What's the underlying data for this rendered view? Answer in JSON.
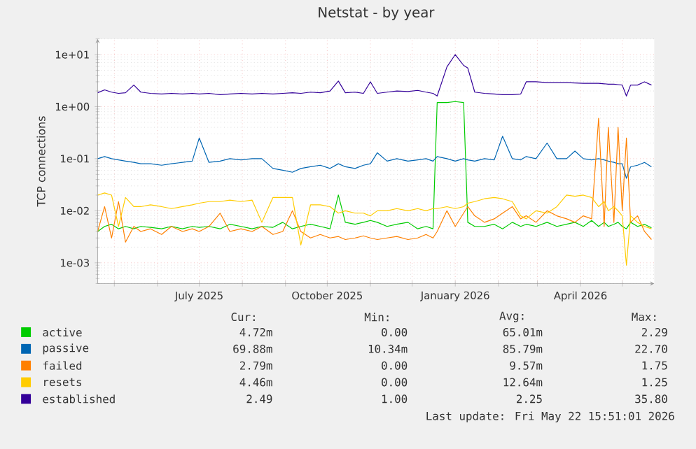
{
  "chart_data": {
    "type": "line",
    "title": "Netstat - by year",
    "ylabel": "TCP connections",
    "log": true,
    "grid": true,
    "legend": "bottom",
    "xlim": [
      "2025-04-19",
      "2026-05-24"
    ],
    "xticks": [
      {
        "value": "2025-05-01",
        "label": null
      },
      {
        "value": "2025-06-01",
        "label": null
      },
      {
        "value": "2025-07-01",
        "label": "July 2025"
      },
      {
        "value": "2025-08-01",
        "label": null
      },
      {
        "value": "2025-09-01",
        "label": null
      },
      {
        "value": "2025-10-01",
        "label": "October 2025"
      },
      {
        "value": "2025-11-01",
        "label": null
      },
      {
        "value": "2025-12-01",
        "label": null
      },
      {
        "value": "2026-01-01",
        "label": "January 2026"
      },
      {
        "value": "2026-02-01",
        "label": null
      },
      {
        "value": "2026-03-01",
        "label": null
      },
      {
        "value": "2026-04-01",
        "label": "April 2026"
      },
      {
        "value": "2026-05-01",
        "label": null
      }
    ],
    "ylim": [
      0.0004,
      20
    ],
    "yticks": [
      {
        "value": 0.001,
        "label": "1e-03"
      },
      {
        "value": 0.01,
        "label": "1e-02"
      },
      {
        "value": 0.1,
        "label": "1e-01"
      },
      {
        "value": 1,
        "label": "1e+00"
      },
      {
        "value": 10,
        "label": "1e+01"
      }
    ],
    "x": [
      "2025-04-19",
      "2025-04-24",
      "2025-04-29",
      "2025-05-04",
      "2025-05-09",
      "2025-05-15",
      "2025-05-20",
      "2025-05-27",
      "2025-06-04",
      "2025-06-11",
      "2025-06-19",
      "2025-06-26",
      "2025-07-01",
      "2025-07-08",
      "2025-07-16",
      "2025-07-23",
      "2025-07-31",
      "2025-08-08",
      "2025-08-15",
      "2025-08-23",
      "2025-08-30",
      "2025-09-06",
      "2025-09-12",
      "2025-09-19",
      "2025-09-26",
      "2025-10-03",
      "2025-10-09",
      "2025-10-14",
      "2025-10-21",
      "2025-10-27",
      "2025-11-01",
      "2025-11-06",
      "2025-11-13",
      "2025-11-20",
      "2025-11-28",
      "2025-12-05",
      "2025-12-11",
      "2025-12-16",
      "2025-12-19",
      "2025-12-26",
      "2026-01-01",
      "2026-01-07",
      "2026-01-10",
      "2026-01-15",
      "2026-01-22",
      "2026-01-29",
      "2026-02-04",
      "2026-02-11",
      "2026-02-17",
      "2026-02-21",
      "2026-02-28",
      "2026-03-08",
      "2026-03-15",
      "2026-03-22",
      "2026-03-28",
      "2026-04-03",
      "2026-04-09",
      "2026-04-14",
      "2026-04-18",
      "2026-04-21",
      "2026-04-25",
      "2026-04-28",
      "2026-05-01",
      "2026-05-04",
      "2026-05-07",
      "2026-05-12",
      "2026-05-17",
      "2026-05-22"
    ],
    "series": [
      {
        "name": "active",
        "color": "#00cc00",
        "values": [
          0.004,
          0.005,
          0.0055,
          0.0045,
          0.005,
          0.0045,
          0.005,
          0.0048,
          0.0045,
          0.005,
          0.0045,
          0.005,
          0.0048,
          0.005,
          0.0045,
          0.0055,
          0.005,
          0.0045,
          0.005,
          0.0048,
          0.006,
          0.0045,
          0.005,
          0.0055,
          0.005,
          0.0045,
          0.02,
          0.006,
          0.0055,
          0.006,
          0.0065,
          0.006,
          0.005,
          0.0055,
          0.006,
          0.0045,
          0.005,
          0.0045,
          1.2,
          1.2,
          1.25,
          1.2,
          0.006,
          0.005,
          0.005,
          0.0055,
          0.0045,
          0.006,
          0.005,
          0.0055,
          0.005,
          0.006,
          0.005,
          0.0055,
          0.006,
          0.005,
          0.0065,
          0.005,
          0.006,
          0.005,
          0.0055,
          0.006,
          0.005,
          0.0045,
          0.006,
          0.005,
          0.0055,
          0.0047
        ]
      },
      {
        "name": "passive",
        "color": "#0066b3",
        "values": [
          0.1,
          0.11,
          0.1,
          0.095,
          0.09,
          0.085,
          0.08,
          0.08,
          0.075,
          0.08,
          0.085,
          0.09,
          0.25,
          0.085,
          0.09,
          0.1,
          0.095,
          0.1,
          0.1,
          0.065,
          0.06,
          0.055,
          0.065,
          0.07,
          0.075,
          0.065,
          0.08,
          0.07,
          0.065,
          0.075,
          0.08,
          0.13,
          0.09,
          0.1,
          0.09,
          0.095,
          0.1,
          0.09,
          0.11,
          0.1,
          0.09,
          0.1,
          0.095,
          0.09,
          0.1,
          0.095,
          0.27,
          0.1,
          0.095,
          0.11,
          0.1,
          0.2,
          0.1,
          0.1,
          0.14,
          0.1,
          0.095,
          0.1,
          0.095,
          0.09,
          0.085,
          0.08,
          0.08,
          0.042,
          0.07,
          0.075,
          0.085,
          0.07
        ]
      },
      {
        "name": "failed",
        "color": "#ff8000",
        "values": [
          0.004,
          0.012,
          0.003,
          0.015,
          0.0025,
          0.005,
          0.004,
          0.0045,
          0.0035,
          0.005,
          0.004,
          0.0045,
          0.004,
          0.005,
          0.009,
          0.004,
          0.0045,
          0.004,
          0.005,
          0.0035,
          0.004,
          0.01,
          0.004,
          0.003,
          0.0035,
          0.003,
          0.0032,
          0.0028,
          0.003,
          0.0033,
          0.003,
          0.0028,
          0.003,
          0.0032,
          0.0028,
          0.003,
          0.0035,
          0.003,
          0.004,
          0.01,
          0.005,
          0.009,
          0.012,
          0.008,
          0.006,
          0.007,
          0.009,
          0.012,
          0.007,
          0.008,
          0.006,
          0.01,
          0.008,
          0.007,
          0.006,
          0.008,
          0.007,
          0.6,
          0.005,
          0.4,
          0.006,
          0.4,
          0.01,
          0.25,
          0.006,
          0.008,
          0.004,
          0.0028
        ]
      },
      {
        "name": "resets",
        "color": "#ffcc00",
        "values": [
          0.02,
          0.022,
          0.02,
          0.005,
          0.018,
          0.012,
          0.012,
          0.013,
          0.012,
          0.011,
          0.012,
          0.013,
          0.014,
          0.015,
          0.015,
          0.016,
          0.015,
          0.016,
          0.006,
          0.018,
          0.018,
          0.018,
          0.0022,
          0.013,
          0.013,
          0.012,
          0.009,
          0.01,
          0.009,
          0.009,
          0.008,
          0.01,
          0.01,
          0.011,
          0.01,
          0.011,
          0.01,
          0.011,
          0.011,
          0.012,
          0.011,
          0.012,
          0.014,
          0.015,
          0.017,
          0.018,
          0.017,
          0.015,
          0.008,
          0.007,
          0.01,
          0.009,
          0.012,
          0.02,
          0.019,
          0.02,
          0.018,
          0.012,
          0.015,
          0.01,
          0.012,
          0.01,
          0.008,
          0.0009,
          0.008,
          0.006,
          0.005,
          0.0045
        ]
      },
      {
        "name": "established",
        "color": "#330099",
        "values": [
          1.85,
          2.1,
          1.9,
          1.8,
          1.85,
          2.6,
          1.9,
          1.8,
          1.75,
          1.8,
          1.75,
          1.8,
          1.75,
          1.8,
          1.7,
          1.75,
          1.8,
          1.75,
          1.8,
          1.75,
          1.8,
          1.85,
          1.8,
          1.9,
          1.85,
          2.0,
          3.1,
          1.85,
          1.9,
          1.8,
          3.0,
          1.8,
          1.9,
          2.0,
          1.95,
          2.05,
          1.9,
          1.8,
          1.6,
          5.8,
          10,
          6.2,
          5.5,
          1.9,
          1.8,
          1.75,
          1.7,
          1.7,
          1.75,
          3.0,
          3.0,
          2.9,
          2.9,
          2.9,
          2.85,
          2.8,
          2.8,
          2.8,
          2.75,
          2.7,
          2.7,
          2.65,
          2.6,
          1.6,
          2.6,
          2.6,
          3.0,
          2.6
        ]
      }
    ],
    "annotations": [
      "Cur:",
      "Min:",
      "Avg:",
      "Max:",
      "4.72m",
      "0.00",
      "65.01m",
      "2.29",
      "69.88m",
      "10.34m",
      "85.79m",
      "22.70",
      "2.79m",
      "0.00",
      "9.57m",
      "1.75",
      "4.46m",
      "0.00",
      "12.64m",
      "1.25",
      "2.49",
      "1.00",
      "2.25",
      "35.80",
      "Last update: Fri May 22 15:51:01 2026"
    ]
  }
}
